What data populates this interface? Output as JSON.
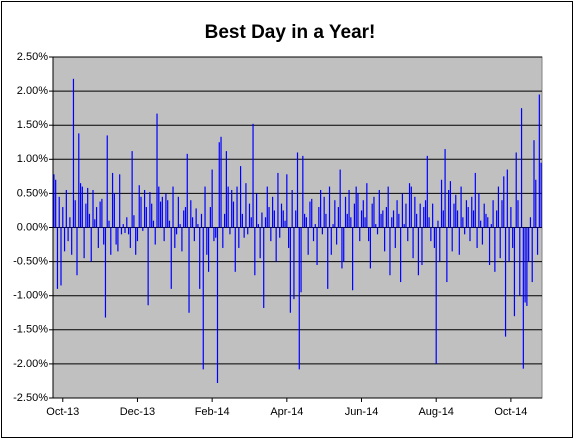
{
  "chart_data": {
    "type": "bar",
    "title": "Best Day in a Year!",
    "color": "#0000ff",
    "grid": true,
    "ylim": [
      -2.5,
      2.5
    ],
    "yticks": [
      {
        "value": -2.5,
        "label": "-2.50%"
      },
      {
        "value": -2.0,
        "label": "-2.00%"
      },
      {
        "value": -1.5,
        "label": "-1.50%"
      },
      {
        "value": -1.0,
        "label": "-1.00%"
      },
      {
        "value": -0.5,
        "label": "-0.50%"
      },
      {
        "value": 0,
        "label": "0.00%"
      },
      {
        "value": 0.5,
        "label": "0.50%"
      },
      {
        "value": 1.0,
        "label": "1.00%"
      },
      {
        "value": 1.5,
        "label": "1.50%"
      },
      {
        "value": 2.0,
        "label": "2.00%"
      },
      {
        "value": 2.5,
        "label": "2.50%"
      }
    ],
    "categories": [
      null,
      null,
      null,
      null,
      null,
      "Oct-13",
      null,
      null,
      null,
      null,
      null,
      null,
      null,
      null,
      null,
      null,
      null,
      null,
      null,
      null,
      null,
      null,
      null,
      null,
      null,
      null,
      null,
      null,
      null,
      null,
      null,
      null,
      null,
      null,
      null,
      null,
      null,
      null,
      null,
      null,
      null,
      null,
      null,
      null,
      null,
      null,
      null,
      "Dec-13",
      null,
      null,
      null,
      null,
      null,
      null,
      null,
      null,
      null,
      null,
      null,
      null,
      null,
      null,
      null,
      null,
      null,
      null,
      null,
      null,
      null,
      null,
      null,
      null,
      null,
      null,
      null,
      null,
      null,
      null,
      null,
      null,
      null,
      null,
      null,
      null,
      null,
      null,
      null,
      null,
      null,
      "Feb-14",
      null,
      null,
      null,
      null,
      null,
      null,
      null,
      null,
      null,
      null,
      null,
      null,
      null,
      null,
      null,
      null,
      null,
      null,
      null,
      null,
      null,
      null,
      null,
      null,
      null,
      null,
      null,
      null,
      null,
      null,
      null,
      null,
      null,
      null,
      null,
      null,
      null,
      null,
      null,
      null,
      null,
      "Apr-14",
      null,
      null,
      null,
      null,
      null,
      null,
      null,
      null,
      null,
      null,
      null,
      null,
      null,
      null,
      null,
      null,
      null,
      null,
      null,
      null,
      null,
      null,
      null,
      null,
      null,
      null,
      null,
      null,
      null,
      null,
      null,
      null,
      null,
      null,
      null,
      null,
      null,
      null,
      null,
      null,
      null,
      "Jun-14",
      null,
      null,
      null,
      null,
      null,
      null,
      null,
      null,
      null,
      null,
      null,
      null,
      null,
      null,
      null,
      null,
      null,
      null,
      null,
      null,
      null,
      null,
      null,
      null,
      null,
      null,
      null,
      null,
      null,
      null,
      null,
      null,
      null,
      null,
      null,
      null,
      null,
      null,
      null,
      null,
      null,
      "Aug-14",
      null,
      null,
      null,
      null,
      null,
      null,
      null,
      null,
      null,
      null,
      null,
      null,
      null,
      null,
      null,
      null,
      null,
      null,
      null,
      null,
      null,
      null,
      null,
      null,
      null,
      null,
      null,
      null,
      null,
      null,
      null,
      null,
      null,
      null,
      null,
      null,
      null,
      null,
      null,
      null,
      null,
      "Oct-14",
      null,
      null,
      null,
      null,
      null,
      null,
      null,
      null,
      null,
      null,
      null,
      null,
      null,
      null,
      null,
      null,
      null
    ],
    "values": [
      0.78,
      0.7,
      -0.9,
      0.45,
      -0.85,
      0.3,
      -0.35,
      0.55,
      -0.2,
      0.15,
      -0.4,
      2.18,
      0.4,
      -0.7,
      1.38,
      0.65,
      0.6,
      -0.45,
      0.35,
      0.58,
      0.2,
      -0.5,
      0.55,
      0.12,
      0.3,
      -0.3,
      0.38,
      0.42,
      -0.25,
      -1.32,
      1.35,
      0.1,
      -0.4,
      0.8,
      0.5,
      -0.25,
      -0.35,
      0.78,
      -0.1,
      0.05,
      -0.08,
      0.15,
      -0.1,
      -0.3,
      1.12,
      0.18,
      -0.4,
      -0.2,
      0.62,
      0.45,
      -0.05,
      0.55,
      0.3,
      -1.14,
      0.52,
      0.35,
      0.1,
      -0.25,
      1.67,
      0.6,
      0.38,
      0.45,
      -0.2,
      0.5,
      0.4,
      0.1,
      -0.9,
      0.6,
      -0.3,
      -0.1,
      0.45,
      0.05,
      -0.35,
      0.25,
      0.3,
      1.08,
      -1.25,
      0.4,
      0.15,
      -0.2,
      0.28,
      0.05,
      -0.9,
      0.2,
      -2.08,
      0.6,
      -0.4,
      -0.65,
      0.3,
      0.85,
      -0.2,
      -0.15,
      -2.28,
      1.25,
      1.33,
      -0.3,
      0.2,
      1.12,
      0.6,
      -0.1,
      0.55,
      0.38,
      -0.65,
      0.6,
      -0.3,
      0.9,
      0.2,
      -0.15,
      0.65,
      -0.1,
      0.35,
      0.15,
      1.52,
      -0.7,
      0.5,
      0.05,
      -0.45,
      0.22,
      -1.18,
      0.15,
      0.6,
      0.3,
      -0.2,
      0.45,
      0.25,
      -0.5,
      0.8,
      -0.15,
      0.35,
      0.25,
      0.1,
      0.78,
      -0.3,
      -1.25,
      0.55,
      -1.05,
      0.25,
      1.1,
      -2.08,
      -0.95,
      1.05,
      0.2,
      0.15,
      -0.4,
      0.38,
      0.42,
      -0.2,
      0.05,
      -0.55,
      0.3,
      0.55,
      -0.1,
      0.45,
      0.2,
      -0.9,
      0.6,
      -0.4,
      0.05,
      0.4,
      -0.25,
      0.3,
      0.85,
      -0.6,
      -0.5,
      0.45,
      0.2,
      0.55,
      0.15,
      -0.92,
      0.35,
      0.6,
      0.5,
      -0.2,
      0.25,
      0.4,
      0.15,
      0.65,
      -0.2,
      -0.6,
      0.35,
      0.45,
      0.05,
      -0.1,
      0.55,
      0.2,
      0.25,
      -0.35,
      0.3,
      0.6,
      -0.7,
      0.15,
      0.25,
      -0.3,
      0.4,
      0.2,
      -0.8,
      0.5,
      0.05,
      0.35,
      -0.2,
      0.65,
      0.6,
      -0.45,
      0.45,
      0.2,
      -0.7,
      0.35,
      -0.55,
      0.3,
      0.4,
      1.05,
      0.15,
      -0.2,
      0.35,
      -0.3,
      -2.0,
      0.1,
      -0.5,
      0.7,
      0.25,
      1.15,
      -0.8,
      0.55,
      0.68,
      -0.35,
      0.35,
      0.48,
      0.25,
      -0.4,
      0.6,
      0.15,
      -0.1,
      0.4,
      0.3,
      -0.2,
      0.45,
      0.25,
      0.8,
      -0.3,
      0.5,
      0.1,
      -0.25,
      0.35,
      0.2,
      0.15,
      -0.55,
      0.05,
      0.4,
      -0.65,
      0.25,
      0.6,
      -0.45,
      0.4,
      0.75,
      -1.6,
      0.85,
      -0.5,
      0.3,
      -0.3,
      -1.3,
      1.1,
      0.4,
      -1.0,
      1.75,
      -2.07,
      -1.1,
      -1.15,
      -0.5,
      0.15,
      -0.8,
      1.28,
      0.7,
      -0.4,
      1.95,
      0.95
    ]
  }
}
